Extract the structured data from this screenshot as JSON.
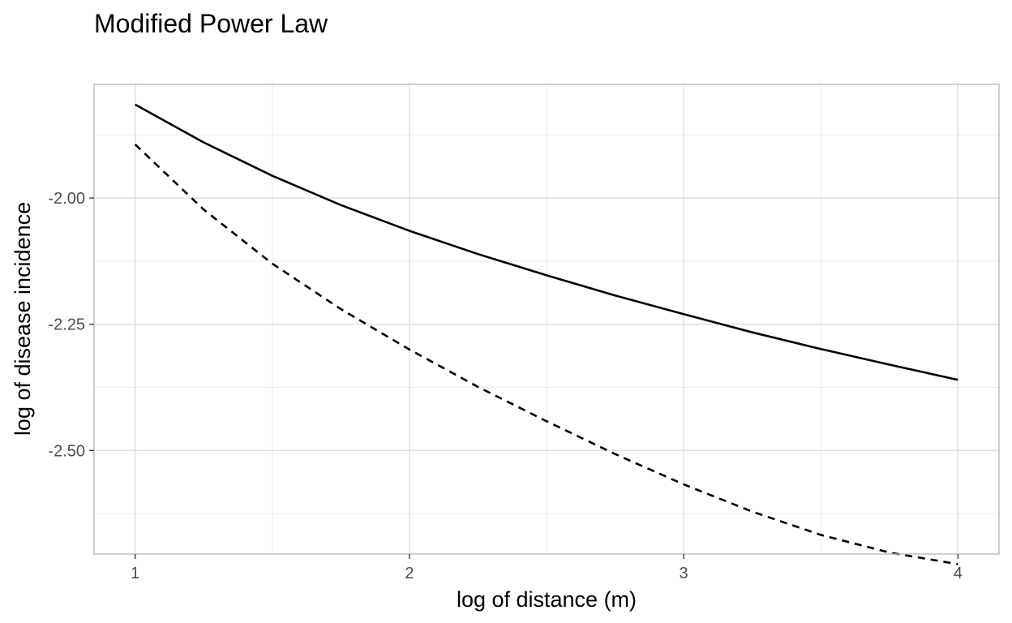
{
  "chart_data": {
    "type": "line",
    "title": "Modified Power Law",
    "xlabel": "log of distance (m)",
    "ylabel": "log of disease incidence",
    "xlim": [
      0.85,
      4.15
    ],
    "ylim": [
      -2.705,
      -1.775
    ],
    "x_ticks": [
      1,
      2,
      3,
      4
    ],
    "x_tick_labels": [
      "1",
      "2",
      "3",
      "4"
    ],
    "x_minor_ticks": [
      1.5,
      2.5,
      3.5
    ],
    "y_ticks": [
      -2.0,
      -2.25,
      -2.5
    ],
    "y_tick_labels": [
      "-2.00",
      "-2.25",
      "-2.50"
    ],
    "y_minor_ticks": [
      -1.875,
      -2.125,
      -2.375,
      -2.625
    ],
    "grid": true,
    "legend": "none",
    "series": [
      {
        "style": "solid",
        "color": "#000000",
        "x": [
          1.0,
          1.25,
          1.5,
          1.75,
          2.0,
          2.25,
          2.5,
          2.75,
          3.0,
          3.25,
          3.5,
          3.75,
          4.0
        ],
        "y": [
          -1.815,
          -1.89,
          -1.956,
          -2.014,
          -2.065,
          -2.111,
          -2.153,
          -2.193,
          -2.23,
          -2.266,
          -2.299,
          -2.33,
          -2.36
        ]
      },
      {
        "style": "dashed",
        "color": "#000000",
        "x": [
          1.0,
          1.25,
          1.5,
          1.75,
          2.0,
          2.25,
          2.5,
          2.75,
          3.0,
          3.25,
          3.5,
          3.75,
          4.0
        ],
        "y": [
          -1.894,
          -2.023,
          -2.13,
          -2.22,
          -2.3,
          -2.374,
          -2.442,
          -2.507,
          -2.567,
          -2.621,
          -2.667,
          -2.702,
          -2.725
        ]
      }
    ]
  }
}
